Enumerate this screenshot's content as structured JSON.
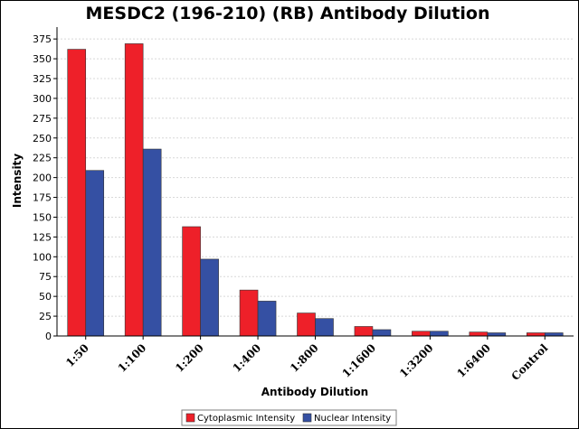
{
  "chart_data": {
    "type": "bar",
    "title": "MESDC2 (196-210) (RB) Antibody Dilution",
    "xlabel": "Antibody Dilution",
    "ylabel": "Intensity",
    "categories": [
      "1:50",
      "1:100",
      "1:200",
      "1:400",
      "1:800",
      "1:1600",
      "1:3200",
      "1:6400",
      "Control"
    ],
    "series": [
      {
        "name": "Cytoplasmic Intensity",
        "color": "#ee2029",
        "values": [
          362,
          369,
          138,
          58,
          29,
          12,
          6,
          5,
          4
        ]
      },
      {
        "name": "Nuclear Intensity",
        "color": "#3550a3",
        "values": [
          209,
          236,
          97,
          44,
          22,
          8,
          6,
          4,
          4
        ]
      }
    ],
    "ylim": [
      0,
      390
    ],
    "yticks": [
      0,
      25,
      50,
      75,
      100,
      125,
      150,
      175,
      200,
      225,
      250,
      275,
      300,
      325,
      350,
      375
    ],
    "grid": true,
    "legend_position": "bottom-center"
  }
}
